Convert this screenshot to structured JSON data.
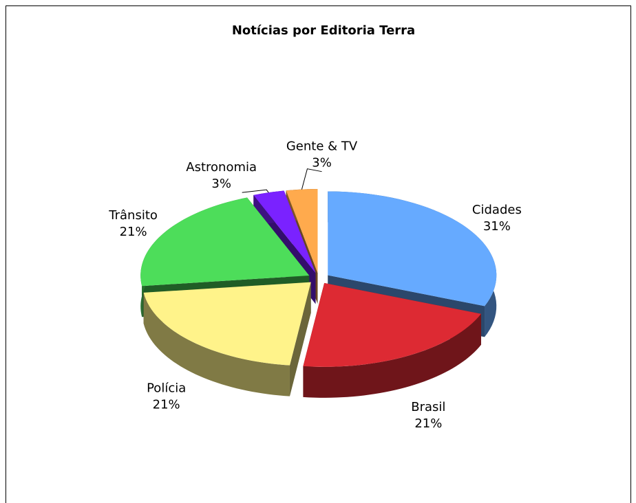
{
  "chart_data": {
    "type": "pie",
    "title": "Notícias por Editoria Terra",
    "categories": [
      "Cidades",
      "Brasil",
      "Polícia",
      "Trânsito",
      "Astronomia",
      "Gente & TV"
    ],
    "values": [
      31,
      21,
      21,
      21,
      3,
      3
    ],
    "value_labels": [
      "31%",
      "21%",
      "21%",
      "21%",
      "3%",
      "3%"
    ],
    "colors": [
      "#66aaff",
      "#dd2a33",
      "#fff38a",
      "#4ddd5a",
      "#7a22ff",
      "#ffaa4d"
    ]
  }
}
